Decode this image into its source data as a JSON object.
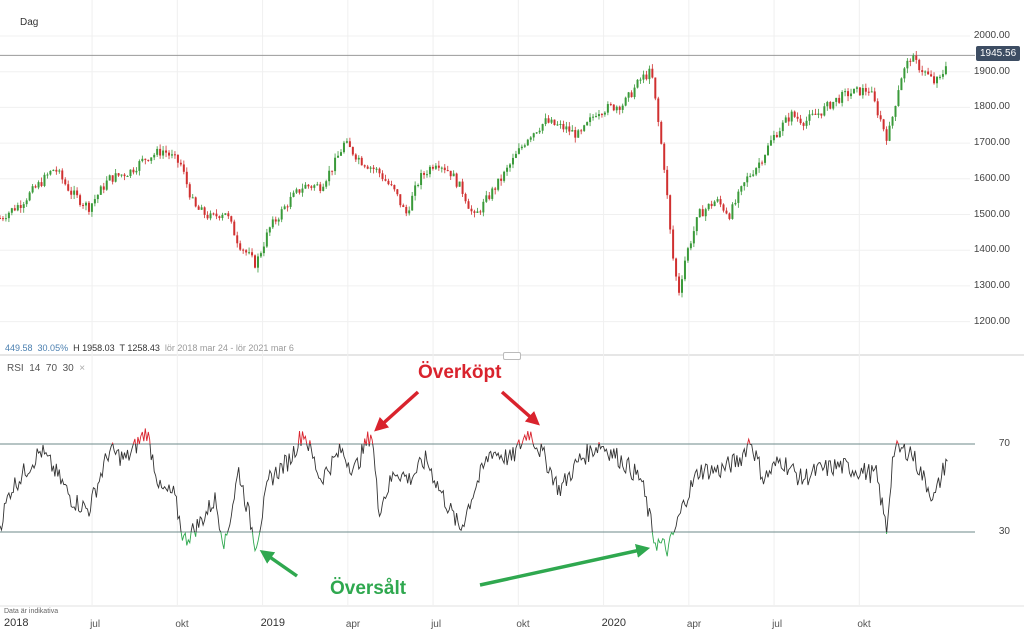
{
  "header": {
    "interval": "Dag"
  },
  "info": {
    "change": "449.58",
    "change_pct": "30.05%",
    "high": "H 1958.03",
    "low": "T 1258.43",
    "range": "lör 2018 mar 24 - lör 2021 mar 6"
  },
  "rsi_header": {
    "name": "RSI",
    "period": "14",
    "upper": "70",
    "lower": "30",
    "close": "×"
  },
  "footer_note": "Data är indikativa",
  "annotations": {
    "overbought": "Överköpt",
    "oversold": "Översålt"
  },
  "colors": {
    "up": "#3a9a3a",
    "down": "#d03030",
    "overbought": "#d9232d",
    "oversold": "#2fa84f",
    "badge": "#3d4d63"
  },
  "chart_data": [
    {
      "type": "candlestick",
      "ylim": [
        1150,
        2050
      ],
      "yticks": [
        "2000.00",
        "1900.00",
        "1800.00",
        "1700.00",
        "1600.00",
        "1500.00",
        "1400.00",
        "1300.00",
        "1200.00"
      ],
      "ytick_values": [
        2000,
        1900,
        1800,
        1700,
        1600,
        1500,
        1400,
        1300,
        1200
      ],
      "last_price": "1945.56",
      "last_price_value": 1945.56,
      "x": [
        2018.23,
        2018.29,
        2018.36,
        2018.39,
        2018.44,
        2018.49,
        2018.55,
        2018.61,
        2018.66,
        2018.71,
        2018.76,
        2018.8,
        2018.85,
        2018.89,
        2018.93,
        2018.98,
        2019.02,
        2019.08,
        2019.12,
        2019.17,
        2019.21,
        2019.24,
        2019.29,
        2019.34,
        2019.39,
        2019.42,
        2019.46,
        2019.51,
        2019.55,
        2019.59,
        2019.62,
        2019.67,
        2019.7,
        2019.74,
        2019.78,
        2019.83,
        2019.89,
        2019.93,
        2019.98,
        2020.02,
        2020.06,
        2020.11,
        2020.14,
        2020.16,
        2020.18,
        2020.2,
        2020.22,
        2020.24,
        2020.28,
        2020.33,
        2020.37,
        2020.42,
        2020.46,
        2020.5,
        2020.55,
        2020.59,
        2020.64,
        2020.68,
        2020.72,
        2020.78,
        2020.83,
        2020.84,
        2020.87,
        2020.9,
        2020.94,
        2020.97,
        2020.99,
        2021.01
      ],
      "close": [
        1490,
        1530,
        1600,
        1630,
        1560,
        1520,
        1600,
        1620,
        1660,
        1680,
        1640,
        1520,
        1490,
        1510,
        1420,
        1360,
        1460,
        1540,
        1580,
        1580,
        1640,
        1700,
        1650,
        1620,
        1560,
        1500,
        1600,
        1650,
        1620,
        1560,
        1490,
        1560,
        1600,
        1660,
        1720,
        1760,
        1740,
        1720,
        1790,
        1800,
        1810,
        1880,
        1900,
        1760,
        1620,
        1400,
        1280,
        1380,
        1500,
        1540,
        1500,
        1600,
        1650,
        1720,
        1780,
        1760,
        1790,
        1820,
        1840,
        1850,
        1720,
        1740,
        1880,
        1940,
        1900,
        1870,
        1880,
        1945.56
      ]
    },
    {
      "type": "line",
      "name": "RSI 14",
      "ylim": [
        0,
        100
      ],
      "yticks": [
        "70",
        "30"
      ],
      "ytick_values": [
        70,
        30
      ],
      "x": [
        2018.23,
        2018.26,
        2018.35,
        2018.39,
        2018.44,
        2018.49,
        2018.55,
        2018.6,
        2018.66,
        2018.7,
        2018.74,
        2018.77,
        2018.82,
        2018.86,
        2018.89,
        2018.93,
        2018.98,
        2019.02,
        2019.08,
        2019.12,
        2019.17,
        2019.23,
        2019.27,
        2019.32,
        2019.34,
        2019.39,
        2019.43,
        2019.48,
        2019.52,
        2019.58,
        2019.62,
        2019.67,
        2019.73,
        2019.78,
        2019.83,
        2019.87,
        2019.93,
        2019.99,
        2020.05,
        2020.11,
        2020.15,
        2020.19,
        2020.24,
        2020.28,
        2020.34,
        2020.4,
        2020.43,
        2020.47,
        2020.52,
        2020.58,
        2020.63,
        2020.69,
        2020.75,
        2020.8,
        2020.83,
        2020.85,
        2020.9,
        2020.94,
        2020.97,
        2021.01
      ],
      "values": [
        33,
        49,
        67,
        58,
        45,
        40,
        67,
        63,
        76,
        49,
        47,
        26,
        35,
        45,
        24,
        58,
        24,
        54,
        63,
        76,
        54,
        67,
        58,
        76,
        40,
        58,
        54,
        63,
        49,
        31,
        49,
        67,
        63,
        76,
        63,
        49,
        63,
        70,
        63,
        54,
        26,
        22,
        45,
        58,
        58,
        63,
        72,
        54,
        63,
        54,
        58,
        60,
        58,
        56,
        31,
        67,
        67,
        54,
        45,
        65
      ]
    }
  ],
  "xaxis": {
    "ticks": [
      {
        "label": "2018",
        "value": 2018.0
      },
      {
        "label": "jul",
        "value": 2018.5
      },
      {
        "label": "okt",
        "value": 2018.75
      },
      {
        "label": "2019",
        "value": 2019.0
      },
      {
        "label": "apr",
        "value": 2019.25
      },
      {
        "label": "jul",
        "value": 2019.5
      },
      {
        "label": "okt",
        "value": 2019.75
      },
      {
        "label": "2020",
        "value": 2020.0
      },
      {
        "label": "apr",
        "value": 2020.25
      },
      {
        "label": "jul",
        "value": 2020.5
      },
      {
        "label": "okt",
        "value": 2020.75
      }
    ]
  }
}
